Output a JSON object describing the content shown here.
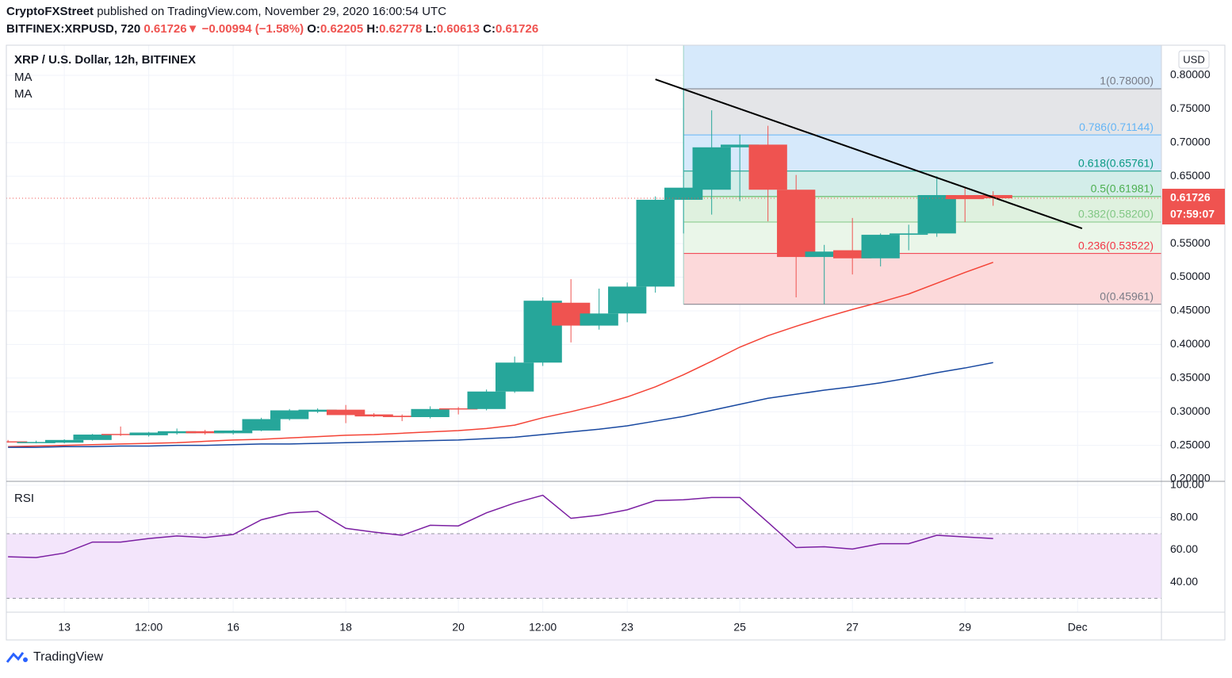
{
  "header": {
    "publisher": "CryptoFXStreet",
    "published": " published on TradingView.com, November 29, 2020 16:00:54 UTC",
    "symbol": "BITFINEX:XRPUSD, 720",
    "last": "0.61726",
    "arrow": "▼",
    "change": "−0.00994 (−1.58%)",
    "o_label": "O:",
    "o": "0.62205",
    "h_label": "H:",
    "h": "0.62778",
    "l_label": "L:",
    "l": "0.60613",
    "c_label": "C:",
    "c": "0.61726"
  },
  "footer": {
    "brand": "TradingView"
  },
  "chart_data": [
    {
      "type": "candlestick",
      "title": "XRP / U.S. Dollar, 12h, BITFINEX",
      "currency": "USD",
      "x": [
        12,
        12.5,
        13,
        13.5,
        14,
        14.5,
        15,
        15.5,
        16,
        16.5,
        17,
        17.5,
        18,
        18.5,
        19,
        19.5,
        20,
        20.5,
        21,
        21.5,
        22,
        22.5,
        23,
        23.5,
        24,
        24.5,
        25,
        25.5,
        26,
        26.5,
        27,
        27.5,
        28,
        28.5,
        29,
        29.5
      ],
      "open": [
        0.256,
        0.255,
        0.254,
        0.258,
        0.267,
        0.265,
        0.268,
        0.271,
        0.268,
        0.272,
        0.289,
        0.3,
        0.303,
        0.296,
        0.294,
        0.292,
        0.305,
        0.304,
        0.33,
        0.373,
        0.462,
        0.428,
        0.446,
        0.486,
        0.615,
        0.63,
        0.693,
        0.697,
        0.63,
        0.53,
        0.54,
        0.528,
        0.563,
        0.565,
        0.622,
        0.62205
      ],
      "high": [
        0.258,
        0.257,
        0.259,
        0.267,
        0.278,
        0.27,
        0.275,
        0.273,
        0.273,
        0.291,
        0.304,
        0.305,
        0.31,
        0.298,
        0.296,
        0.308,
        0.307,
        0.333,
        0.382,
        0.47,
        0.497,
        0.483,
        0.492,
        0.62,
        0.78,
        0.748,
        0.712,
        0.725,
        0.652,
        0.548,
        0.588,
        0.565,
        0.578,
        0.65,
        0.632,
        0.62778
      ],
      "low": [
        0.254,
        0.253,
        0.253,
        0.257,
        0.264,
        0.263,
        0.266,
        0.266,
        0.266,
        0.271,
        0.287,
        0.298,
        0.283,
        0.292,
        0.286,
        0.29,
        0.296,
        0.302,
        0.328,
        0.368,
        0.403,
        0.422,
        0.433,
        0.477,
        0.565,
        0.593,
        0.613,
        0.583,
        0.47,
        0.46,
        0.504,
        0.516,
        0.54,
        0.56,
        0.582,
        0.60613
      ],
      "close": [
        0.255,
        0.255,
        0.258,
        0.266,
        0.266,
        0.269,
        0.271,
        0.268,
        0.272,
        0.289,
        0.302,
        0.303,
        0.295,
        0.293,
        0.292,
        0.304,
        0.304,
        0.33,
        0.373,
        0.465,
        0.428,
        0.446,
        0.486,
        0.615,
        0.633,
        0.693,
        0.697,
        0.63,
        0.53,
        0.538,
        0.528,
        0.563,
        0.565,
        0.622,
        0.616,
        0.61726
      ],
      "up_color": "#26a69a",
      "down_color": "#ef5350",
      "xlim": [
        11.97,
        32.49
      ],
      "xticks": [
        13,
        {
          "value": 14.5,
          "label": "12:00"
        },
        16,
        18,
        20,
        {
          "value": 21.5,
          "label": "12:00"
        },
        23,
        25,
        27,
        29,
        {
          "value": 31,
          "label": "Dec"
        }
      ],
      "ylim": [
        0.1965,
        0.8448
      ],
      "yticks": [
        {
          "value": 0.8,
          "label": "0.80000"
        },
        {
          "value": 0.75,
          "label": "0.75000"
        },
        {
          "value": 0.7,
          "label": "0.70000"
        },
        {
          "value": 0.65,
          "label": "0.65000"
        },
        {
          "value": 0.55,
          "label": "0.55000"
        },
        {
          "value": 0.5,
          "label": "0.50000"
        },
        {
          "value": 0.45,
          "label": "0.45000"
        },
        {
          "value": 0.4,
          "label": "0.40000"
        },
        {
          "value": 0.35,
          "label": "0.35000"
        },
        {
          "value": 0.3,
          "label": "0.30000"
        },
        {
          "value": 0.25,
          "label": "0.25000"
        },
        {
          "value": 0.2,
          "label": "0.20000"
        }
      ],
      "grid": true,
      "overlays": [
        {
          "name": "MA",
          "color": "#f44336",
          "values": [
            0.248,
            0.249,
            0.25,
            0.251,
            0.252,
            0.253,
            0.254,
            0.256,
            0.258,
            0.259,
            0.261,
            0.263,
            0.265,
            0.266,
            0.268,
            0.27,
            0.272,
            0.275,
            0.28,
            0.291,
            0.3,
            0.31,
            0.322,
            0.337,
            0.355,
            0.375,
            0.396,
            0.413,
            0.427,
            0.44,
            0.452,
            0.463,
            0.475,
            0.491,
            0.507,
            0.522
          ]
        },
        {
          "name": "MA",
          "color": "#1848a0",
          "values": [
            0.247,
            0.247,
            0.248,
            0.248,
            0.249,
            0.249,
            0.25,
            0.25,
            0.251,
            0.252,
            0.252,
            0.253,
            0.254,
            0.255,
            0.256,
            0.257,
            0.258,
            0.26,
            0.262,
            0.266,
            0.27,
            0.274,
            0.279,
            0.286,
            0.293,
            0.302,
            0.311,
            0.32,
            0.326,
            0.332,
            0.337,
            0.343,
            0.35,
            0.358,
            0.365,
            0.373
          ]
        }
      ],
      "trendline": {
        "x": [
          23.5,
          31.08
        ],
        "y": [
          0.794,
          0.5725
        ],
        "color": "#000000"
      },
      "fib": {
        "start_x": 24,
        "top_fill": "#d6e9fb",
        "levels": [
          {
            "label": "1(0.78000)",
            "value": 0.78,
            "color": "#787b86",
            "fill": "#e4e5e8"
          },
          {
            "label": "0.786(0.71144)",
            "value": 0.71144,
            "color": "#64b5f6",
            "fill": "#d6e9fb"
          },
          {
            "label": "0.618(0.65761)",
            "value": 0.65761,
            "color": "#089981",
            "fill": "#d3ede9"
          },
          {
            "label": "0.5(0.61981)",
            "value": 0.61981,
            "color": "#4caf50",
            "fill": "#dff1df"
          },
          {
            "label": "0.382(0.58200)",
            "value": 0.582,
            "color": "#81c784",
            "fill": "#eaf6e9"
          },
          {
            "label": "0.236(0.53522)",
            "value": 0.53522,
            "color": "#f23645",
            "fill": "#fcd9da"
          },
          {
            "label": "0(0.45961)",
            "value": 0.45961,
            "color": "#787b86"
          }
        ]
      },
      "last_price": {
        "value": 0.61726,
        "label": "0.61726",
        "color": "#ef5350"
      },
      "countdown": "07:59:07"
    },
    {
      "type": "line",
      "title": "RSI",
      "x": [
        12,
        12.5,
        13,
        13.5,
        14,
        14.5,
        15,
        15.5,
        16,
        16.5,
        17,
        17.5,
        18,
        18.5,
        19,
        19.5,
        20,
        20.5,
        21,
        21.5,
        22,
        22.5,
        23,
        23.5,
        24,
        24.5,
        25,
        25.5,
        26,
        26.5,
        27,
        27.5,
        28,
        28.5,
        29,
        29.5
      ],
      "series": [
        {
          "color": "#7b1fa2",
          "values": [
            55.7,
            55.2,
            58,
            64.8,
            64.8,
            67,
            68.6,
            67.6,
            69.5,
            78.6,
            82.9,
            83.8,
            73.3,
            71,
            69,
            75.2,
            74.8,
            82.9,
            89,
            93.8,
            79.5,
            81.4,
            84.8,
            90.5,
            91,
            92.4,
            92.4,
            77,
            61.4,
            61.9,
            60.5,
            63.8,
            63.8,
            69,
            68,
            67
          ]
        }
      ],
      "ylim": [
        21.4,
        102.4
      ],
      "yticks": [
        {
          "value": 100,
          "label": "100.00"
        },
        {
          "value": 80,
          "label": "80.00"
        },
        {
          "value": 60,
          "label": "60.00"
        },
        {
          "value": 40,
          "label": "40.00"
        }
      ],
      "band": [
        30,
        70
      ],
      "band_color": "#f3e5fb",
      "grid": true
    }
  ]
}
